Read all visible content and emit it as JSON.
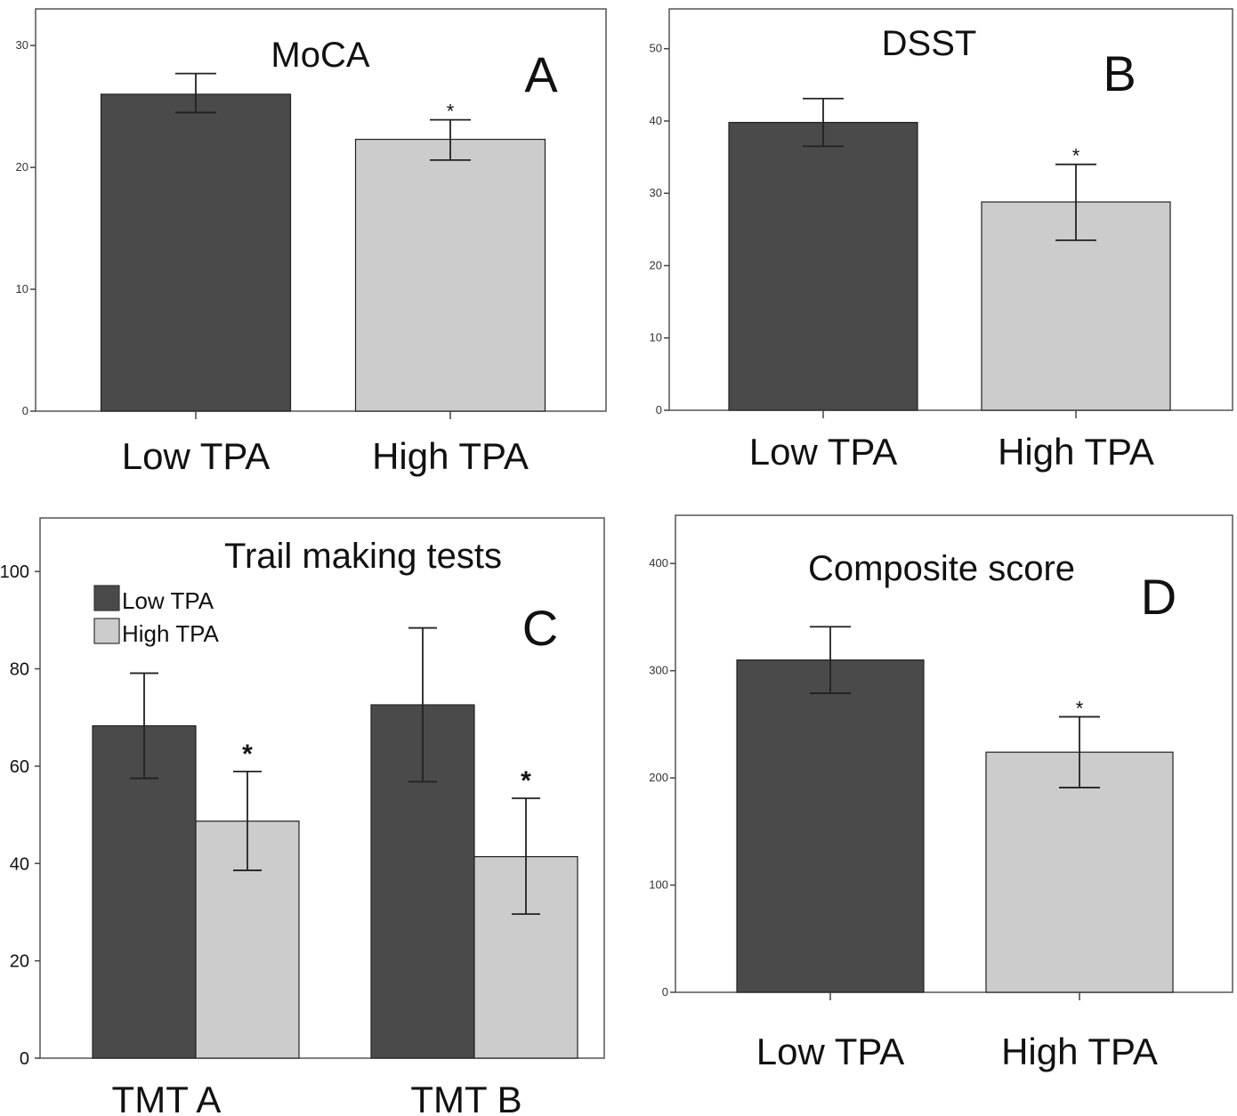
{
  "colors": {
    "low": "#4a4a4a",
    "high": "#cccccc",
    "err": "#222222"
  },
  "chart_data": [
    {
      "id": "A",
      "type": "bar",
      "title": "MoCA",
      "panel_label": "A",
      "categories": [
        "Low TPA",
        "High TPA"
      ],
      "values": [
        26,
        22.3
      ],
      "error_low": [
        24.5,
        20.6
      ],
      "error_high": [
        27.7,
        23.9
      ],
      "significance": [
        "",
        "*"
      ],
      "ylim": [
        0,
        33
      ],
      "yticks": [
        "0",
        "10",
        "20",
        "30"
      ],
      "xlabel": "",
      "ylabel": "",
      "grid": false
    },
    {
      "id": "B",
      "type": "bar",
      "title": "DSST",
      "panel_label": "B",
      "categories": [
        "Low TPA",
        "High TPA"
      ],
      "values": [
        39.8,
        28.8
      ],
      "error_low": [
        36.5,
        23.5
      ],
      "error_high": [
        43.1,
        34
      ],
      "significance": [
        "",
        "*"
      ],
      "ylim": [
        0,
        55.5
      ],
      "yticks": [
        "0",
        "10",
        "20",
        "30",
        "40",
        "50"
      ],
      "xlabel": "",
      "ylabel": "",
      "grid": false
    },
    {
      "id": "C",
      "type": "bar",
      "title": "Trail making tests",
      "panel_label": "C",
      "categories": [
        "TMT A",
        "TMT B"
      ],
      "series": [
        {
          "name": "Low TPA",
          "values": [
            68.3,
            72.6
          ],
          "error_low": [
            57.5,
            56.8
          ],
          "error_high": [
            79.1,
            88.4
          ],
          "significance": [
            "",
            ""
          ]
        },
        {
          "name": "High TPA",
          "values": [
            48.7,
            41.4
          ],
          "error_low": [
            38.6,
            29.6
          ],
          "error_high": [
            58.9,
            53.4
          ],
          "significance": [
            "*",
            "*"
          ]
        }
      ],
      "ylim": [
        0,
        111
      ],
      "yticks": [
        "0",
        "20",
        "40",
        "60",
        "80",
        "100"
      ],
      "legend": "top-left",
      "xlabel": "",
      "ylabel": "",
      "grid": false
    },
    {
      "id": "D",
      "type": "bar",
      "title": "Composite score",
      "panel_label": "D",
      "categories": [
        "Low TPA",
        "High TPA"
      ],
      "values": [
        310,
        224
      ],
      "error_low": [
        279,
        191
      ],
      "error_high": [
        341,
        257
      ],
      "significance": [
        "",
        "*"
      ],
      "ylim": [
        0,
        445
      ],
      "yticks": [
        "0",
        "100",
        "200",
        "300",
        "400"
      ],
      "xlabel": "",
      "ylabel": "",
      "grid": false
    }
  ]
}
